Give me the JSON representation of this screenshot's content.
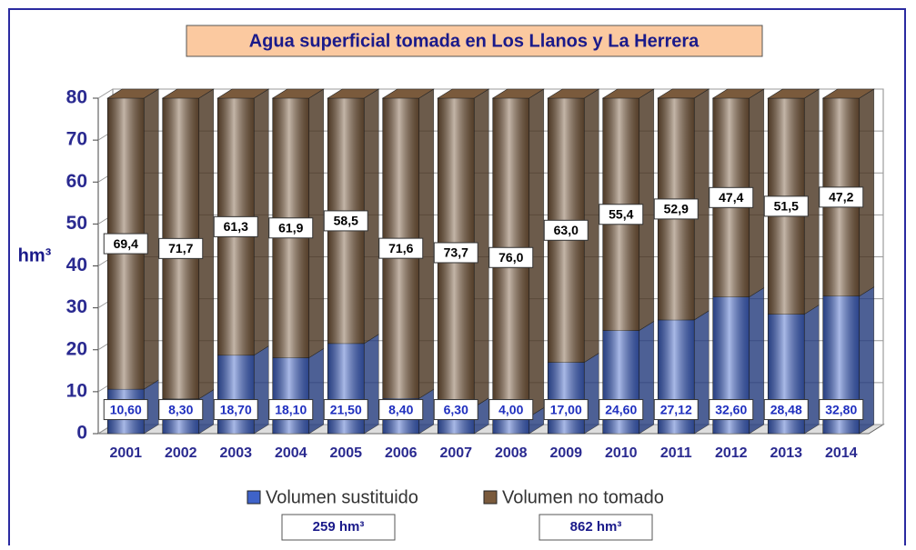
{
  "chart_data": {
    "type": "stacked_bar_3d",
    "title": "Agua superficial tomada en Los Llanos y La Herrera",
    "y_label": "hm³",
    "categories": [
      "2001",
      "2002",
      "2003",
      "2004",
      "2005",
      "2006",
      "2007",
      "2008",
      "2009",
      "2010",
      "2011",
      "2012",
      "2013",
      "2014"
    ],
    "series": [
      {
        "name": "Volumen sustituido",
        "color": "#3f63c9",
        "label_color": "#1f2fbf",
        "values": [
          10.6,
          8.3,
          18.7,
          18.1,
          21.5,
          8.4,
          6.3,
          4.0,
          17.0,
          24.6,
          27.12,
          32.6,
          28.48,
          32.8
        ],
        "value_labels": [
          "10,60",
          "8,30",
          "18,70",
          "18,10",
          "21,50",
          "8,40",
          "6,30",
          "4,00",
          "17,00",
          "24,60",
          "27,12",
          "32,60",
          "28,48",
          "32,80"
        ],
        "total": "259 hm³"
      },
      {
        "name": "Volumen no tomado",
        "color": "#7a5a3c",
        "label_color": "#000000",
        "values": [
          69.4,
          71.7,
          61.3,
          61.9,
          58.5,
          71.6,
          73.7,
          76.0,
          63.0,
          55.4,
          52.9,
          47.4,
          51.5,
          47.2
        ],
        "value_labels": [
          "69,4",
          "71,7",
          "61,3",
          "61,9",
          "58,5",
          "71,6",
          "73,7",
          "76,0",
          "63,0",
          "55,4",
          "52,9",
          "47,4",
          "51,5",
          "47,2"
        ],
        "total": "862 hm³"
      }
    ],
    "ylim": [
      0,
      80
    ],
    "yticks": [
      0,
      10,
      20,
      30,
      40,
      50,
      60,
      70,
      80
    ],
    "grid": true
  }
}
